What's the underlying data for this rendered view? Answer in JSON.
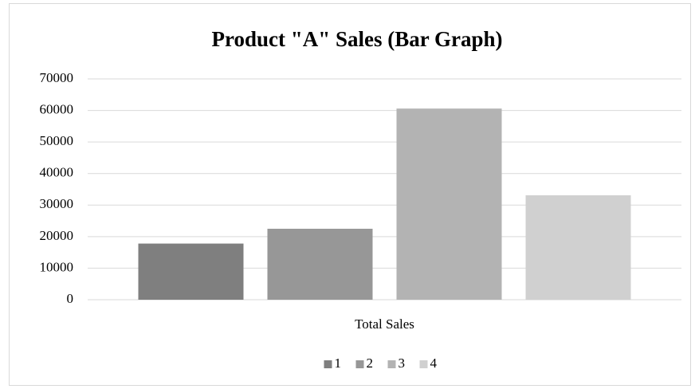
{
  "chart_data": {
    "type": "bar",
    "title": "Product \"A\" Sales (Bar Graph)",
    "categories": [
      "Total Sales"
    ],
    "series": [
      {
        "name": "1",
        "color": "#7f7f7f",
        "values": [
          17800
        ]
      },
      {
        "name": "2",
        "color": "#979797",
        "values": [
          22500
        ]
      },
      {
        "name": "3",
        "color": "#b3b3b3",
        "values": [
          60600
        ]
      },
      {
        "name": "4",
        "color": "#d0d0d0",
        "values": [
          33100
        ]
      }
    ],
    "ylim": [
      0,
      70000
    ],
    "yticks": [
      0,
      10000,
      20000,
      30000,
      40000,
      50000,
      60000,
      70000
    ],
    "grid": true,
    "legend": "bottom"
  }
}
